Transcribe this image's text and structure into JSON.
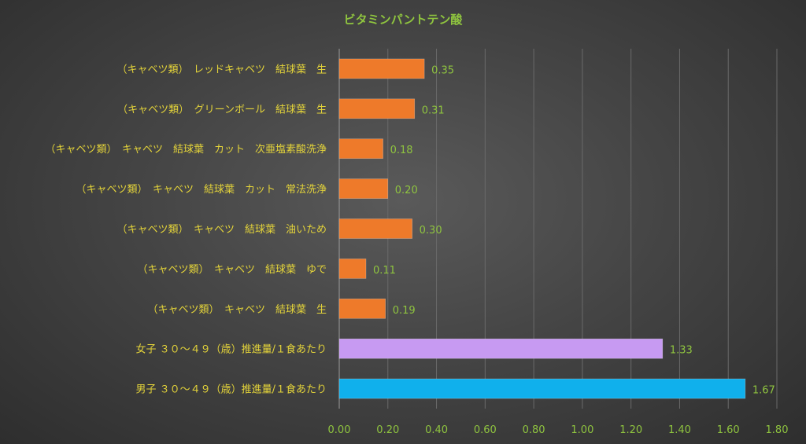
{
  "chart_data": {
    "type": "bar",
    "orientation": "horizontal",
    "title": "ビタミンパントテン酸",
    "categories": [
      "（キャベツ類）　レッドキャベツ　結球葉　生",
      "（キャベツ類）　グリーンボール　結球葉　生",
      "（キャベツ類）　キャベツ　結球葉　カット　次亜塩素酸洗浄",
      "（キャベツ類）　キャベツ　結球葉　カット　常法洗浄",
      "（キャベツ類）　キャベツ　結球葉　油いため",
      "（キャベツ類）　キャベツ　結球葉　ゆで",
      "（キャベツ類）　キャベツ　結球葉　生",
      "女子 ３０～４９（歳）推進量/１食あたり",
      "男子 ３０～４９（歳）推進量/１食あたり"
    ],
    "values": [
      0.35,
      0.31,
      0.18,
      0.2,
      0.3,
      0.11,
      0.19,
      1.33,
      1.67
    ],
    "value_labels": [
      "0.35",
      "0.31",
      "0.18",
      "0.20",
      "0.30",
      "0.11",
      "0.19",
      "1.33",
      "1.67"
    ],
    "bar_colors": [
      "#ee7a2a",
      "#ee7a2a",
      "#ee7a2a",
      "#ee7a2a",
      "#ee7a2a",
      "#ee7a2a",
      "#ee7a2a",
      "#c79af2",
      "#10b0ec"
    ],
    "xlim": [
      0,
      1.8
    ],
    "ticks": [
      0,
      0.2,
      0.4,
      0.6,
      0.8,
      1.0,
      1.2,
      1.4,
      1.6,
      1.8
    ],
    "tick_labels": [
      "0.00",
      "0.20",
      "0.40",
      "0.60",
      "0.80",
      "1.00",
      "1.20",
      "1.40",
      "1.60",
      "1.80"
    ],
    "grid": true,
    "legend": "none",
    "colors": {
      "title": "#8fc43f",
      "category_labels": "#e3d33a",
      "value_labels": "#8fc43f",
      "tick_labels": "#8fc43f"
    }
  }
}
